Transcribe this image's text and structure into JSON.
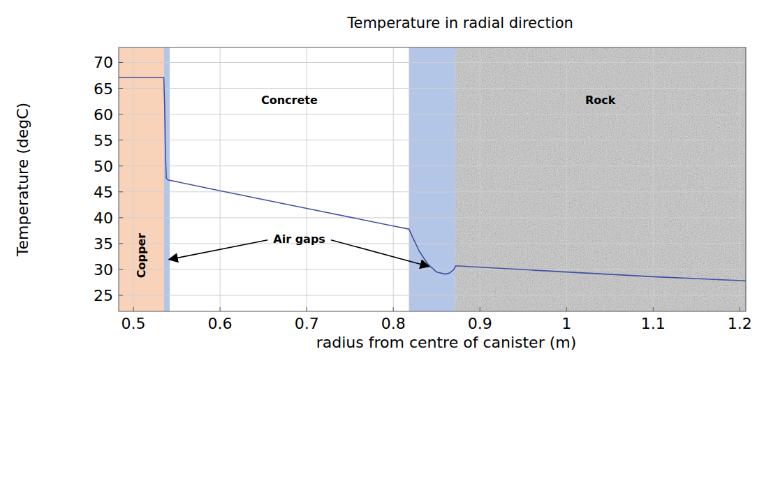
{
  "chart_data": {
    "type": "line",
    "title": "Temperature in radial direction",
    "x_label": "radius from centre of canister (m)",
    "y_label": "Temperature (degC)",
    "x": [
      0.483,
      0.535,
      0.536,
      0.537,
      0.538,
      0.54,
      0.6,
      0.7,
      0.8,
      0.818,
      0.83,
      0.84,
      0.85,
      0.86,
      0.865,
      0.87,
      0.872,
      1.0,
      1.1,
      1.207
    ],
    "values": [
      67.1,
      67.1,
      62.0,
      52.0,
      47.6,
      47.3,
      45.2,
      41.8,
      38.4,
      37.8,
      33.5,
      31.0,
      29.5,
      29.1,
      29.3,
      30.0,
      30.7,
      29.5,
      28.6,
      27.8
    ],
    "color": "#3f51a3",
    "xlim": [
      0.483,
      1.207
    ],
    "ylim": [
      21.9,
      72.9
    ],
    "xticks": [
      0.5,
      0.6,
      0.7,
      0.8,
      0.9,
      1,
      1.1,
      1.2
    ],
    "yticks": [
      25,
      30,
      35,
      40,
      45,
      50,
      55,
      60,
      65,
      70
    ],
    "grid": true,
    "regions": [
      {
        "x0": 0.483,
        "x1": 0.535,
        "color": "#f8d3ba",
        "label": "Copper"
      },
      {
        "x0": 0.535,
        "x1": 0.542,
        "color": "#b4c6e7"
      },
      {
        "x0": 0.542,
        "x1": 0.818,
        "color": "#ffffff",
        "label": "Concrete"
      },
      {
        "x0": 0.818,
        "x1": 0.871,
        "color": "#b4c6e7"
      },
      {
        "x0": 0.871,
        "x1": 1.207,
        "color": "#dcdcdc",
        "label": "Rock"
      }
    ],
    "annotation": "Air gaps"
  }
}
